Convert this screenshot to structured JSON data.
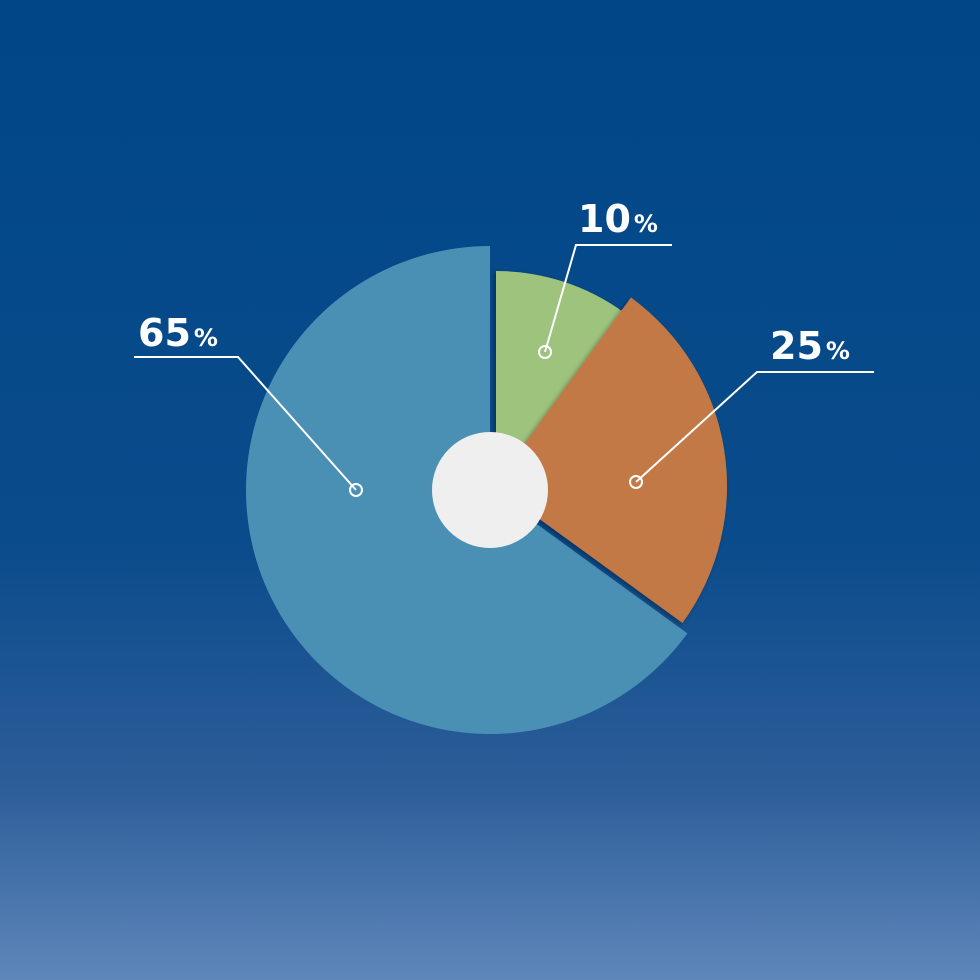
{
  "chart_data": {
    "type": "pie",
    "categories": [
      "10",
      "25",
      "65"
    ],
    "values": [
      10,
      25,
      65
    ],
    "unit": "%",
    "colors": [
      "#9dc37c",
      "#c27945",
      "#4a90b5"
    ],
    "center_color": "#efefef",
    "background_top": "#004788",
    "background_bottom": "#5f87ba"
  }
}
